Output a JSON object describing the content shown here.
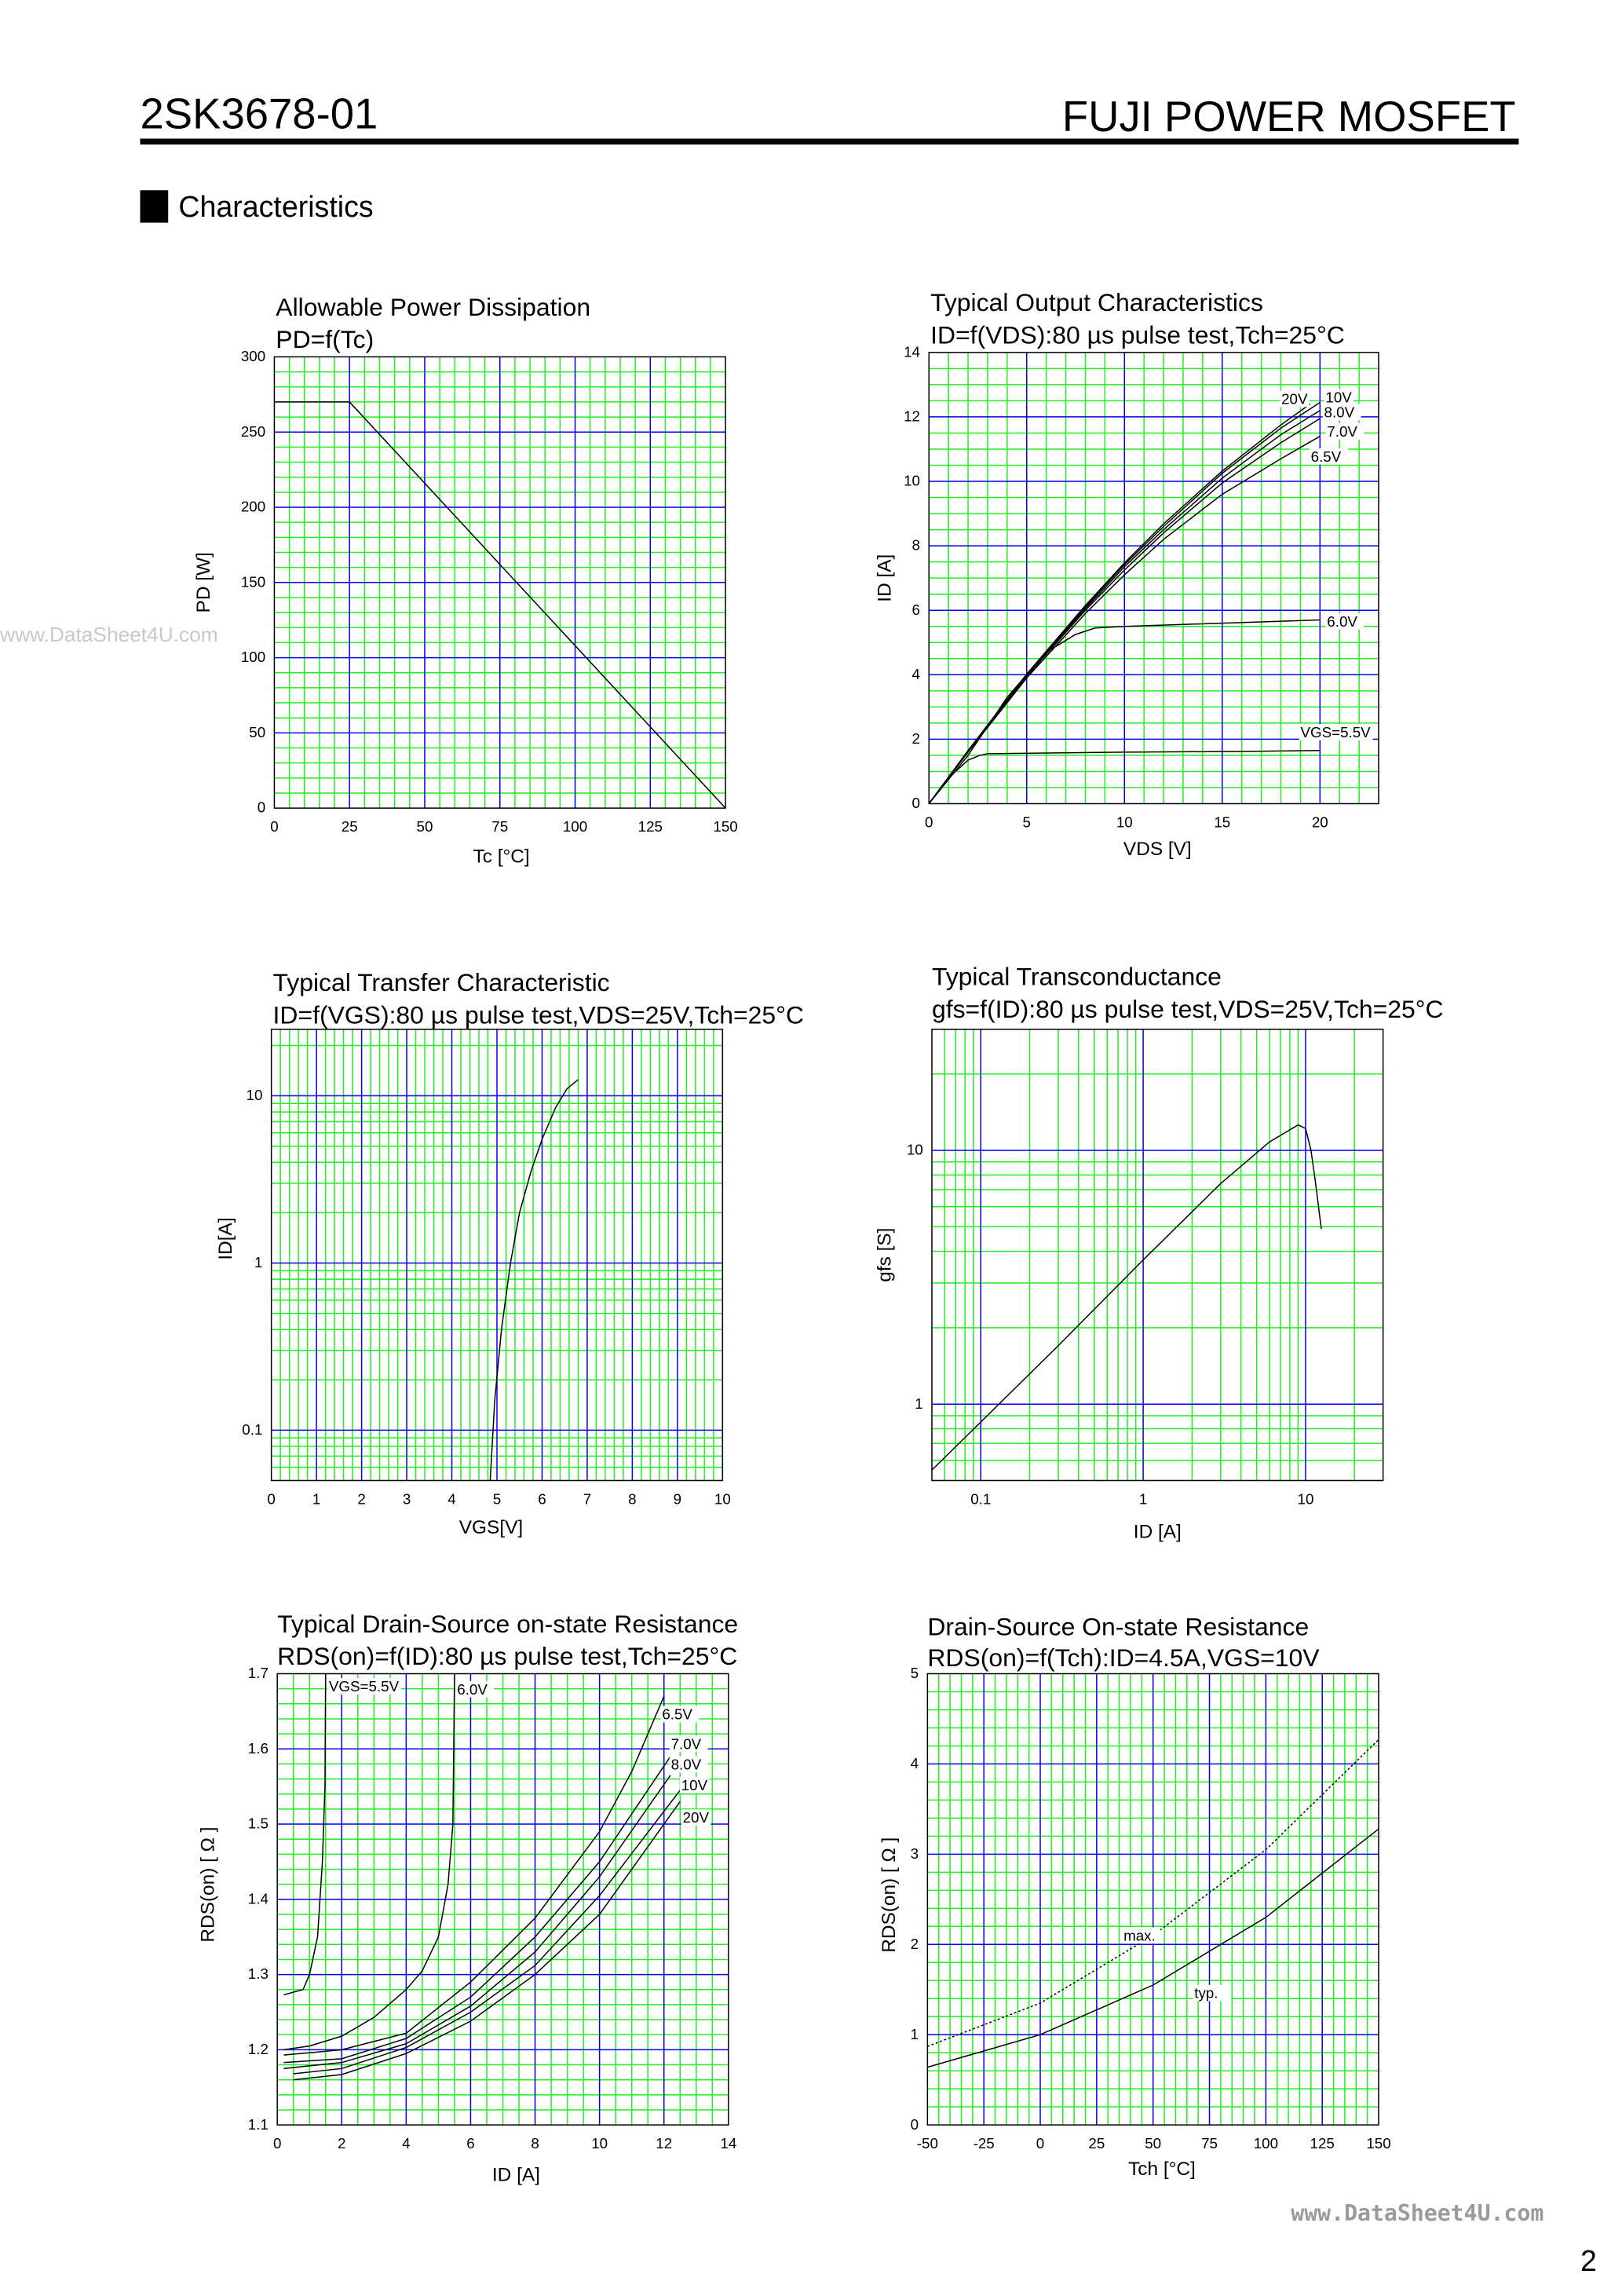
{
  "header": {
    "part_number": "2SK3678-01",
    "product_line": "FUJI POWER MOSFET"
  },
  "section": {
    "title": "Characteristics"
  },
  "watermark": "www.DataSheet4U.com",
  "footer": {
    "watermark": "www.DataSheet4U.com",
    "page_number": "2"
  },
  "colors": {
    "minor_grid": "#22ee22",
    "major_grid": "#0000ee",
    "curve": "#000000"
  },
  "chart_data": [
    {
      "type": "line",
      "title": "Allowable Power Dissipation",
      "subtitle": "PD=f(Tc)",
      "xlabel": "Tc [°C]",
      "ylabel": "PD [W]",
      "xscale": "linear",
      "yscale": "linear",
      "xlim": [
        0,
        150
      ],
      "ylim": [
        0,
        300
      ],
      "xticks": [
        "0",
        "25",
        "50",
        "75",
        "100",
        "125",
        "150"
      ],
      "yticks": [
        "0",
        "50",
        "100",
        "150",
        "200",
        "250",
        "300"
      ],
      "grid": true,
      "series": [
        {
          "name": "",
          "style": "solid",
          "points": [
            [
              0,
              270
            ],
            [
              25,
              270
            ],
            [
              150,
              0
            ]
          ]
        }
      ]
    },
    {
      "type": "line",
      "title": "Typical Output Characteristics",
      "subtitle": "ID=f(VDS):80 µs pulse test,Tch=25°C",
      "xlabel": "VDS [V]",
      "ylabel": "ID [A]",
      "xscale": "linear",
      "yscale": "linear",
      "xlim": [
        0,
        23
      ],
      "ylim": [
        0,
        14
      ],
      "xticks": [
        "0",
        "5",
        "10",
        "15",
        "20"
      ],
      "yticks": [
        "0",
        "2",
        "4",
        "6",
        "8",
        "10",
        "12",
        "14"
      ],
      "grid": true,
      "series": [
        {
          "name": "VGS=5.5V",
          "style": "solid",
          "points": [
            [
              0,
              0
            ],
            [
              1,
              0.8
            ],
            [
              2,
              1.35
            ],
            [
              2.6,
              1.5
            ],
            [
              3,
              1.55
            ],
            [
              10,
              1.6
            ],
            [
              16,
              1.62
            ],
            [
              20,
              1.65
            ]
          ]
        },
        {
          "name": "6.0V",
          "style": "solid",
          "points": [
            [
              0,
              0
            ],
            [
              2,
              1.5
            ],
            [
              4,
              3.3
            ],
            [
              6,
              4.7
            ],
            [
              7.5,
              5.25
            ],
            [
              8.5,
              5.45
            ],
            [
              10,
              5.5
            ],
            [
              15,
              5.6
            ],
            [
              20,
              5.7
            ]
          ]
        },
        {
          "name": "6.5V",
          "style": "solid",
          "points": [
            [
              0,
              0
            ],
            [
              2,
              1.6
            ],
            [
              5,
              3.9
            ],
            [
              8,
              5.9
            ],
            [
              10,
              7.1
            ],
            [
              12,
              8.2
            ],
            [
              15,
              9.6
            ],
            [
              18,
              10.7
            ],
            [
              20,
              11.4
            ]
          ]
        },
        {
          "name": "7.0V",
          "style": "solid",
          "points": [
            [
              0,
              0
            ],
            [
              2,
              1.62
            ],
            [
              5,
              3.95
            ],
            [
              8,
              6.0
            ],
            [
              10,
              7.25
            ],
            [
              12,
              8.4
            ],
            [
              15,
              9.95
            ],
            [
              18,
              11.2
            ],
            [
              20,
              11.95
            ]
          ]
        },
        {
          "name": "8.0V",
          "style": "solid",
          "points": [
            [
              0,
              0
            ],
            [
              2,
              1.63
            ],
            [
              5,
              3.98
            ],
            [
              8,
              6.05
            ],
            [
              10,
              7.35
            ],
            [
              12,
              8.5
            ],
            [
              15,
              10.1
            ],
            [
              18,
              11.45
            ],
            [
              20,
              12.2
            ]
          ]
        },
        {
          "name": "10V",
          "style": "solid",
          "points": [
            [
              0,
              0
            ],
            [
              2,
              1.64
            ],
            [
              5,
              4.0
            ],
            [
              8,
              6.1
            ],
            [
              10,
              7.42
            ],
            [
              12,
              8.6
            ],
            [
              15,
              10.25
            ],
            [
              18,
              11.65
            ],
            [
              20,
              12.45
            ]
          ]
        },
        {
          "name": "20V",
          "style": "solid",
          "points": [
            [
              0,
              0
            ],
            [
              2,
              1.65
            ],
            [
              5,
              4.02
            ],
            [
              8,
              6.15
            ],
            [
              10,
              7.47
            ],
            [
              12,
              8.68
            ],
            [
              15,
              10.32
            ],
            [
              18,
              11.75
            ],
            [
              19.5,
              12.4
            ]
          ]
        }
      ]
    },
    {
      "type": "line",
      "title": "Typical Transfer Characteristic",
      "subtitle": "ID=f(VGS):80 µs pulse test,VDS=25V,Tch=25°C",
      "xlabel": "VGS[V]",
      "ylabel": "ID[A]",
      "xscale": "linear",
      "yscale": "log",
      "xlim": [
        0,
        10
      ],
      "ylim": [
        0.05,
        25
      ],
      "xticks": [
        "0",
        "1",
        "2",
        "3",
        "4",
        "5",
        "6",
        "7",
        "8",
        "9",
        "10"
      ],
      "yticks": [
        "0.1",
        "1",
        "10"
      ],
      "grid": true,
      "series": [
        {
          "name": "",
          "style": "solid",
          "points": [
            [
              4.85,
              0.05
            ],
            [
              4.95,
              0.15
            ],
            [
              5.1,
              0.4
            ],
            [
              5.3,
              1
            ],
            [
              5.5,
              2
            ],
            [
              5.75,
              3.5
            ],
            [
              6.0,
              5.5
            ],
            [
              6.3,
              8.5
            ],
            [
              6.55,
              11
            ],
            [
              6.8,
              12.5
            ]
          ]
        }
      ]
    },
    {
      "type": "line",
      "title": "Typical Transconductance",
      "subtitle": "gfs=f(ID):80 µs pulse test,VDS=25V,Tch=25°C",
      "xlabel": "ID [A]",
      "ylabel": "gfs [S]",
      "xscale": "log",
      "yscale": "log",
      "xlim": [
        0.05,
        30
      ],
      "ylim": [
        0.5,
        30
      ],
      "xticks": [
        "0.1",
        "1",
        "10"
      ],
      "yticks": [
        "1",
        "10"
      ],
      "grid": true,
      "series": [
        {
          "name": "",
          "style": "solid",
          "points": [
            [
              0.05,
              0.55
            ],
            [
              0.1,
              0.85
            ],
            [
              0.3,
              1.7
            ],
            [
              1,
              3.7
            ],
            [
              3,
              7.4
            ],
            [
              6,
              10.8
            ],
            [
              9,
              12.6
            ],
            [
              10,
              12.2
            ],
            [
              10.8,
              10
            ],
            [
              11.5,
              7.5
            ],
            [
              12.5,
              4.9
            ]
          ]
        }
      ]
    },
    {
      "type": "line",
      "title": "Typical Drain-Source on-state Resistance",
      "subtitle": "RDS(on)=f(ID):80  µs pulse test,Tch=25°C",
      "xlabel": "ID [A]",
      "ylabel": "RDS(on) [ Ω ]",
      "xscale": "linear",
      "yscale": "linear",
      "xlim": [
        0,
        14
      ],
      "ylim": [
        1.1,
        1.7
      ],
      "xticks": [
        "0",
        "2",
        "4",
        "6",
        "8",
        "10",
        "12",
        "14"
      ],
      "yticks": [
        "1.1",
        "1.2",
        "1.3",
        "1.4",
        "1.5",
        "1.6",
        "1.7"
      ],
      "grid": true,
      "series": [
        {
          "name": "VGS=5.5V",
          "style": "solid",
          "points": [
            [
              0.2,
              1.273
            ],
            [
              0.8,
              1.28
            ],
            [
              1.0,
              1.3
            ],
            [
              1.25,
              1.35
            ],
            [
              1.4,
              1.45
            ],
            [
              1.48,
              1.55
            ],
            [
              1.5,
              1.7
            ]
          ]
        },
        {
          "name": "6.0V",
          "style": "solid",
          "points": [
            [
              0.2,
              1.2
            ],
            [
              1,
              1.205
            ],
            [
              2,
              1.218
            ],
            [
              3,
              1.243
            ],
            [
              4,
              1.28
            ],
            [
              4.5,
              1.305
            ],
            [
              5,
              1.35
            ],
            [
              5.3,
              1.42
            ],
            [
              5.45,
              1.5
            ],
            [
              5.5,
              1.7
            ]
          ]
        },
        {
          "name": "6.5V",
          "style": "solid",
          "points": [
            [
              0.2,
              1.193
            ],
            [
              1,
              1.196
            ],
            [
              2,
              1.2
            ],
            [
              4,
              1.222
            ],
            [
              6,
              1.29
            ],
            [
              8,
              1.375
            ],
            [
              10,
              1.49
            ],
            [
              11,
              1.57
            ],
            [
              12,
              1.67
            ]
          ]
        },
        {
          "name": "7.0V",
          "style": "solid",
          "points": [
            [
              0.2,
              1.183
            ],
            [
              2,
              1.188
            ],
            [
              4,
              1.215
            ],
            [
              6,
              1.27
            ],
            [
              8,
              1.35
            ],
            [
              10,
              1.45
            ],
            [
              12.2,
              1.59
            ]
          ]
        },
        {
          "name": "8.0V",
          "style": "solid",
          "points": [
            [
              0.2,
              1.175
            ],
            [
              2,
              1.183
            ],
            [
              4,
              1.208
            ],
            [
              6,
              1.258
            ],
            [
              8,
              1.33
            ],
            [
              10,
              1.43
            ],
            [
              12.2,
              1.565
            ]
          ]
        },
        {
          "name": "10V",
          "style": "solid",
          "points": [
            [
              0.5,
              1.168
            ],
            [
              2,
              1.175
            ],
            [
              4,
              1.203
            ],
            [
              6,
              1.25
            ],
            [
              8,
              1.312
            ],
            [
              10,
              1.405
            ],
            [
              12.5,
              1.545
            ]
          ]
        },
        {
          "name": "20V",
          "style": "solid",
          "points": [
            [
              0.5,
              1.16
            ],
            [
              2,
              1.167
            ],
            [
              4,
              1.195
            ],
            [
              6,
              1.238
            ],
            [
              8,
              1.3
            ],
            [
              10,
              1.38
            ],
            [
              12.5,
              1.53
            ]
          ]
        }
      ]
    },
    {
      "type": "line",
      "title": "Drain-Source On-state Resistance",
      "subtitle": "RDS(on)=f(Tch):ID=4.5A,VGS=10V",
      "xlabel": "Tch [°C]",
      "ylabel": "RDS(on) [ Ω ]",
      "xscale": "linear",
      "yscale": "linear",
      "xlim": [
        -50,
        150
      ],
      "ylim": [
        0,
        5
      ],
      "xticks": [
        "-50",
        "-25",
        "0",
        "25",
        "50",
        "75",
        "100",
        "125",
        "150"
      ],
      "yticks": [
        "0",
        "1",
        "2",
        "3",
        "4",
        "5"
      ],
      "grid": true,
      "series": [
        {
          "name": "max.",
          "style": "dotted",
          "points": [
            [
              -50,
              0.87
            ],
            [
              0,
              1.35
            ],
            [
              50,
              2.1
            ],
            [
              100,
              3.05
            ],
            [
              150,
              4.27
            ]
          ]
        },
        {
          "name": "typ.",
          "style": "solid",
          "points": [
            [
              -50,
              0.64
            ],
            [
              0,
              1.0
            ],
            [
              50,
              1.55
            ],
            [
              100,
              2.3
            ],
            [
              150,
              3.28
            ]
          ]
        }
      ]
    }
  ]
}
